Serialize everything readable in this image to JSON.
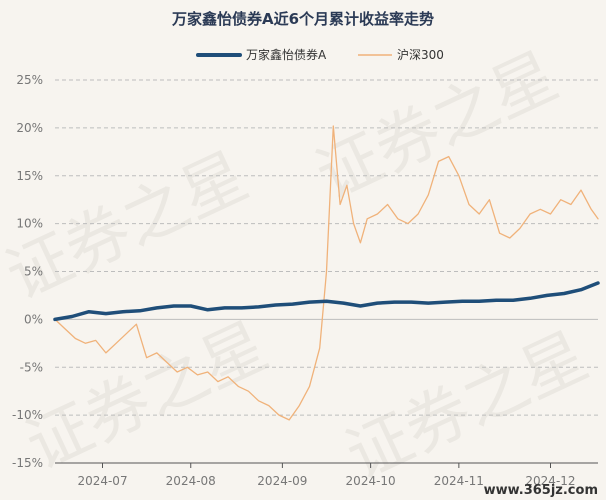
{
  "chart_data": {
    "type": "line",
    "title": "万家鑫怡债券A近6个月累计收益率走势",
    "xlabel": "",
    "ylabel": "",
    "ylim": [
      -15,
      25
    ],
    "yticks": [
      -15,
      -10,
      -5,
      0,
      5,
      10,
      15,
      20,
      25
    ],
    "ytick_labels": [
      "-15%",
      "-10%",
      "-5%",
      "0%",
      "5%",
      "10%",
      "15%",
      "20%",
      "25%"
    ],
    "xtick_labels": [
      "2024-07",
      "2024-08",
      "2024-09",
      "2024-10",
      "2024-11",
      "2024-12"
    ],
    "xtick_positions": [
      0.14,
      0.4,
      0.67,
      0.93,
      1.19,
      1.46
    ],
    "xlim": [
      0,
      1.6
    ],
    "grid": true,
    "legend_position": "top",
    "series": [
      {
        "name": "万家鑫怡债券A",
        "color": "#1f4e79",
        "x": [
          0,
          0.05,
          0.1,
          0.15,
          0.2,
          0.25,
          0.3,
          0.35,
          0.4,
          0.45,
          0.5,
          0.55,
          0.6,
          0.65,
          0.7,
          0.75,
          0.8,
          0.85,
          0.9,
          0.95,
          1.0,
          1.05,
          1.1,
          1.15,
          1.2,
          1.25,
          1.3,
          1.35,
          1.4,
          1.45,
          1.5,
          1.55,
          1.6
        ],
        "values": [
          0.0,
          0.3,
          0.8,
          0.6,
          0.8,
          0.9,
          1.2,
          1.4,
          1.4,
          1.0,
          1.2,
          1.2,
          1.3,
          1.5,
          1.6,
          1.8,
          1.9,
          1.7,
          1.4,
          1.7,
          1.8,
          1.8,
          1.7,
          1.8,
          1.9,
          1.9,
          2.0,
          2.0,
          2.2,
          2.5,
          2.7,
          3.1,
          3.8
        ]
      },
      {
        "name": "沪深300",
        "color": "#f0b27a",
        "x": [
          0,
          0.03,
          0.06,
          0.09,
          0.12,
          0.15,
          0.18,
          0.21,
          0.24,
          0.27,
          0.3,
          0.33,
          0.36,
          0.39,
          0.42,
          0.45,
          0.48,
          0.51,
          0.54,
          0.57,
          0.6,
          0.63,
          0.66,
          0.69,
          0.72,
          0.75,
          0.78,
          0.8,
          0.82,
          0.84,
          0.86,
          0.88,
          0.9,
          0.92,
          0.95,
          0.98,
          1.01,
          1.04,
          1.07,
          1.1,
          1.13,
          1.16,
          1.19,
          1.22,
          1.25,
          1.28,
          1.31,
          1.34,
          1.37,
          1.4,
          1.43,
          1.46,
          1.49,
          1.52,
          1.55,
          1.58,
          1.6
        ],
        "values": [
          0.0,
          -1.0,
          -2.0,
          -2.5,
          -2.2,
          -3.5,
          -2.5,
          -1.5,
          -0.5,
          -4.0,
          -3.5,
          -4.5,
          -5.5,
          -5.0,
          -5.8,
          -5.5,
          -6.5,
          -6.0,
          -7.0,
          -7.5,
          -8.5,
          -9.0,
          -10.0,
          -10.5,
          -9.0,
          -7.0,
          -3.0,
          5.0,
          20.2,
          12.0,
          14.0,
          10.0,
          8.0,
          10.5,
          11.0,
          12.0,
          10.5,
          10.0,
          11.0,
          13.0,
          16.5,
          17.0,
          15.0,
          12.0,
          11.0,
          12.5,
          9.0,
          8.5,
          9.5,
          11.0,
          11.5,
          11.0,
          12.5,
          12.0,
          13.5,
          11.5,
          10.5
        ]
      }
    ]
  },
  "watermark": "证券之星",
  "site_label": "www.365jz.com"
}
